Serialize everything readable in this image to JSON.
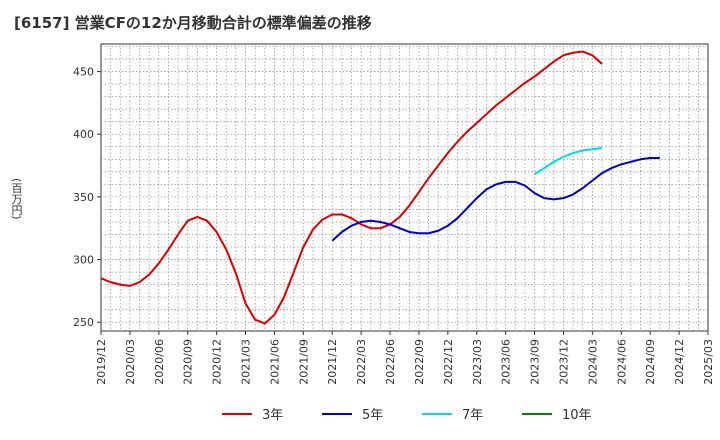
{
  "title": "[6157]  営業CFの12か月移動合計の標準偏差の推移",
  "unit": "(百万円)",
  "chart_data": {
    "type": "line",
    "title": "[6157]  営業CFの12か月移動合計の標準偏差の推移",
    "ylabel": "(百万円)",
    "xlabel": "",
    "ylim": [
      243,
      472
    ],
    "yticks": [
      250,
      300,
      350,
      400,
      450
    ],
    "x_categories": [
      "2019/12",
      "2020/03",
      "2020/06",
      "2020/09",
      "2020/12",
      "2021/03",
      "2021/06",
      "2021/09",
      "2021/12",
      "2022/03",
      "2022/06",
      "2022/09",
      "2022/12",
      "2023/03",
      "2023/06",
      "2023/09",
      "2023/12",
      "2024/03",
      "2024/06",
      "2024/09",
      "2024/12",
      "2025/03"
    ],
    "grid": true,
    "legend_position": "bottom",
    "series": [
      {
        "name": "3年",
        "color": "#dd0000",
        "start_index": 0,
        "values": [
          285,
          282,
          280,
          279,
          282,
          288,
          297,
          308,
          320,
          331,
          334,
          331,
          322,
          308,
          289,
          265,
          252,
          249,
          256,
          270,
          290,
          310,
          324,
          332,
          336,
          336,
          333,
          328,
          325,
          325,
          328,
          334,
          343,
          354,
          365,
          375,
          385,
          394,
          402,
          409,
          416,
          423,
          429,
          435,
          441,
          446,
          452,
          458,
          463,
          465,
          466,
          463,
          456
        ]
      },
      {
        "name": "5年",
        "color": "#0000cc",
        "start_index": 24,
        "values": [
          315,
          322,
          327,
          330,
          331,
          330,
          328,
          325,
          322,
          321,
          321,
          323,
          327,
          333,
          341,
          349,
          356,
          360,
          362,
          362,
          359,
          353,
          349,
          348,
          349,
          352,
          357,
          363,
          369,
          373,
          376,
          378,
          380,
          381,
          381
        ]
      },
      {
        "name": "7年",
        "color": "#00dddd",
        "start_index": 45,
        "values": [
          368,
          373,
          378,
          382,
          385,
          387,
          388,
          389
        ]
      },
      {
        "name": "10年",
        "color": "#008800",
        "start_index": 0,
        "values": []
      }
    ]
  }
}
